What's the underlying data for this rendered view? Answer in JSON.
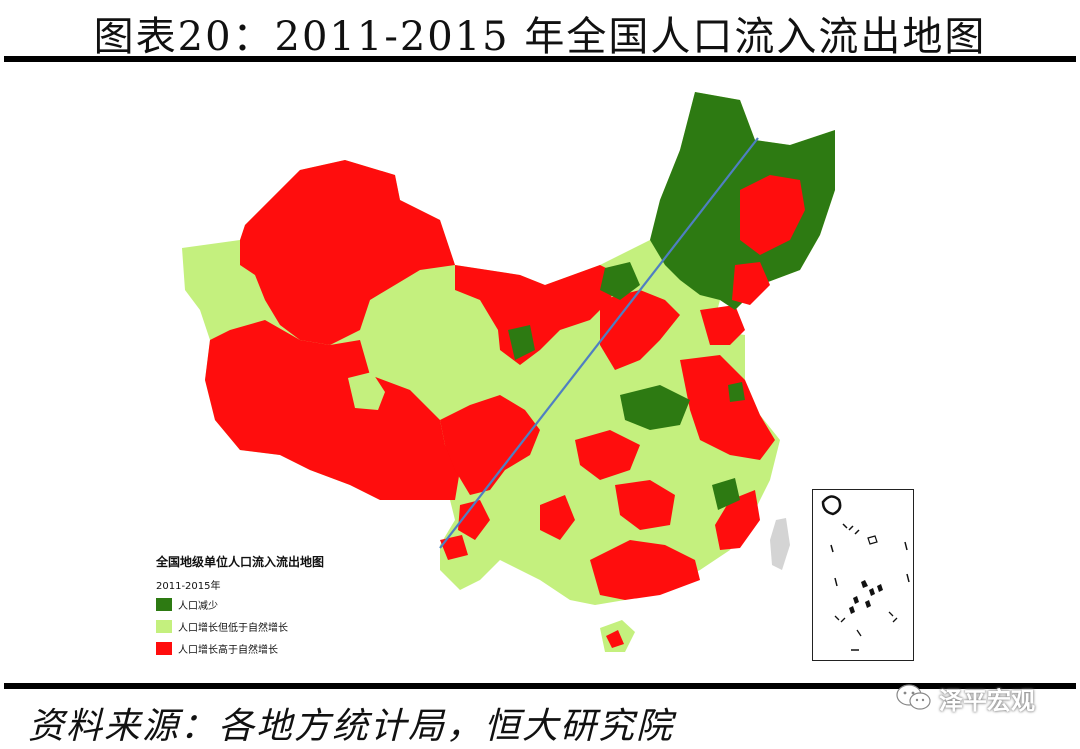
{
  "title": "图表20：2011-2015 年全国人口流入流出地图",
  "source": "资料来源：各地方统计局，恒大研究院",
  "watermark": "泽平宏观",
  "legend": {
    "title": "全国地级单位人口流入流出地图",
    "period": "2011-2015年",
    "items": [
      {
        "label": "人口减少",
        "color": "#2d7a12"
      },
      {
        "label": "人口增长但低于自然增长",
        "color": "#c4f07e"
      },
      {
        "label": "人口增长高于自然增长",
        "color": "#ff0d0d"
      }
    ]
  },
  "colors": {
    "decrease": "#2d7a12",
    "low_growth": "#c4f07e",
    "high_growth": "#ff0d0d",
    "hu_line": "#4f7fc2"
  }
}
